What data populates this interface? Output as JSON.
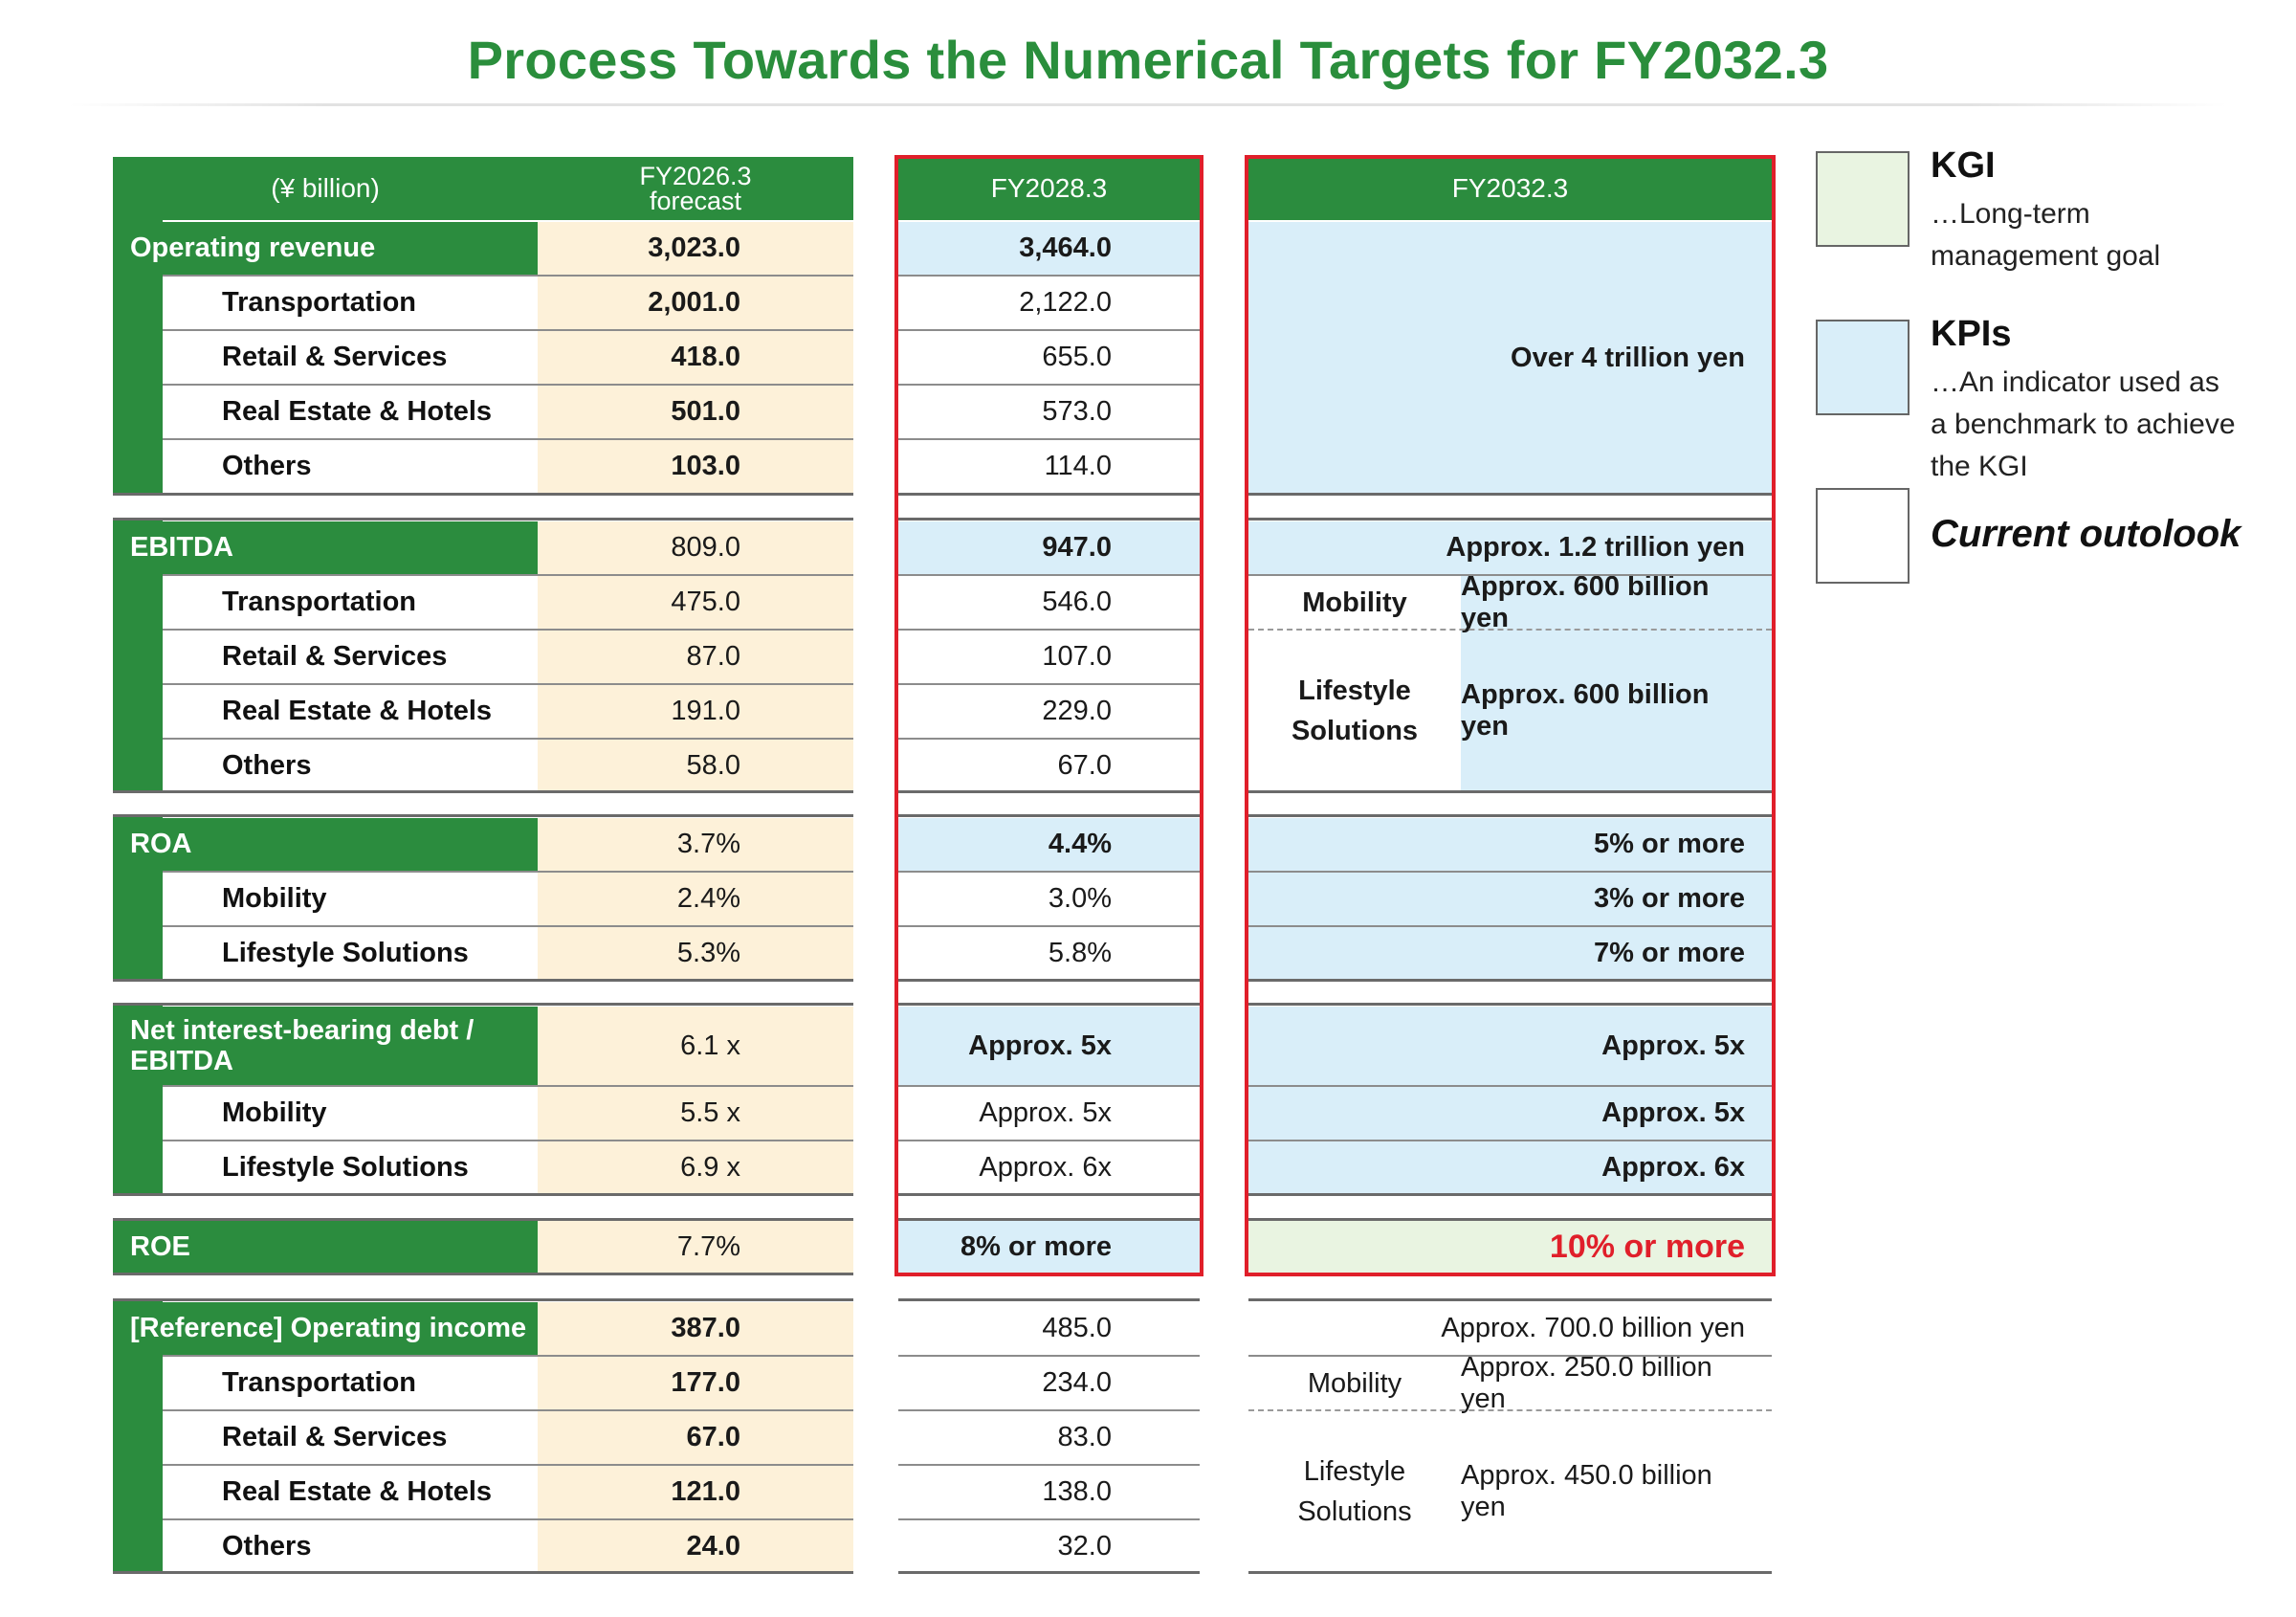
{
  "title": "Process Towards the Numerical Targets for FY2032.3",
  "header": {
    "unit": "(¥ billion)",
    "col1_line1": "FY2026.3",
    "col1_line2": "forecast",
    "col2": "FY2028.3",
    "col3": "FY2032.3"
  },
  "operating_revenue": {
    "label": "Operating revenue",
    "total": {
      "fy2026": "3,023.0",
      "fy2028": "3,464.0"
    },
    "rows": [
      {
        "label": "Transportation",
        "fy2026": "2,001.0",
        "fy2028": "2,122.0"
      },
      {
        "label": "Retail & Services",
        "fy2026": "418.0",
        "fy2028": "655.0"
      },
      {
        "label": "Real Estate & Hotels",
        "fy2026": "501.0",
        "fy2028": "573.0"
      },
      {
        "label": "Others",
        "fy2026": "103.0",
        "fy2028": "114.0"
      }
    ],
    "target": "Over 4 trillion yen"
  },
  "ebitda": {
    "label": "EBITDA",
    "total": {
      "fy2026": "809.0",
      "fy2028": "947.0",
      "fy2032": "Approx. 1.2 trillion yen"
    },
    "rows": [
      {
        "label": "Transportation",
        "fy2026": "475.0",
        "fy2028": "546.0"
      },
      {
        "label": "Retail & Services",
        "fy2026": "87.0",
        "fy2028": "107.0"
      },
      {
        "label": "Real Estate & Hotels",
        "fy2026": "191.0",
        "fy2028": "229.0"
      },
      {
        "label": "Others",
        "fy2026": "58.0",
        "fy2028": "67.0"
      }
    ],
    "seg_mobility": "Mobility",
    "seg_mobility_value": "Approx. 600 billion yen",
    "seg_lifestyle_line1": "Lifestyle",
    "seg_lifestyle_line2": "Solutions",
    "seg_lifestyle_value": "Approx. 600 billion yen"
  },
  "roa": {
    "label": "ROA",
    "total": {
      "fy2026": "3.7%",
      "fy2028": "4.4%",
      "fy2032": "5% or more"
    },
    "rows": [
      {
        "label": "Mobility",
        "fy2026": "2.4%",
        "fy2028": "3.0%",
        "fy2032": "3% or more"
      },
      {
        "label": "Lifestyle Solutions",
        "fy2026": "5.3%",
        "fy2028": "5.8%",
        "fy2032": "7% or more"
      }
    ]
  },
  "debt": {
    "label_line1": "Net interest-bearing debt /",
    "label_line2": "EBITDA",
    "total": {
      "fy2026": "6.1 x",
      "fy2028": "Approx. 5x",
      "fy2032": "Approx. 5x"
    },
    "rows": [
      {
        "label": "Mobility",
        "fy2026": "5.5 x",
        "fy2028": "Approx. 5x",
        "fy2032": "Approx. 5x"
      },
      {
        "label": "Lifestyle Solutions",
        "fy2026": "6.9 x",
        "fy2028": "Approx. 6x",
        "fy2032": "Approx. 6x"
      }
    ]
  },
  "roe": {
    "label": "ROE",
    "fy2026": "7.7%",
    "fy2028": "8% or more",
    "fy2032": "10% or more"
  },
  "op_income": {
    "label": "[Reference] Operating income",
    "total": {
      "fy2026": "387.0",
      "fy2028": "485.0",
      "fy2032": "Approx. 700.0 billion yen"
    },
    "rows": [
      {
        "label": "Transportation",
        "fy2026": "177.0",
        "fy2028": "234.0"
      },
      {
        "label": "Retail & Services",
        "fy2026": "67.0",
        "fy2028": "83.0"
      },
      {
        "label": "Real Estate & Hotels",
        "fy2026": "121.0",
        "fy2028": "138.0"
      },
      {
        "label": "Others",
        "fy2026": "24.0",
        "fy2028": "32.0"
      }
    ],
    "seg_mobility": "Mobility",
    "seg_mobility_value": "Approx. 250.0 billion yen",
    "seg_lifestyle_line1": "Lifestyle",
    "seg_lifestyle_line2": "Solutions",
    "seg_lifestyle_value": "Approx. 450.0 billion yen"
  },
  "legend": {
    "kgi_title": "KGI",
    "kgi_desc_line1": "…Long-term",
    "kgi_desc_line2": "management goal",
    "kpi_title": "KPIs",
    "kpi_desc_line1": "…An indicator used as",
    "kpi_desc_line2": "a benchmark to achieve",
    "kpi_desc_line3": "the KGI",
    "current_title": "Current outolook"
  },
  "colors": {
    "green": "#2b8c3e",
    "cream": "#fdf1d9",
    "kpi_blue": "#d9eef9",
    "kgi_green": "#e9f4e1",
    "target_red": "#e01f2a"
  }
}
